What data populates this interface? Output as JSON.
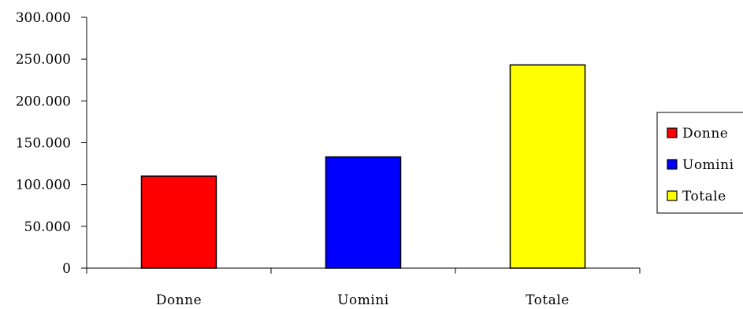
{
  "chart_data": {
    "type": "bar",
    "title": "",
    "xlabel": "",
    "ylabel": "",
    "categories": [
      "Donne",
      "Uomini",
      "Totale"
    ],
    "values": [
      110000,
      133000,
      243000
    ],
    "colors": [
      "#ff0000",
      "#0000ff",
      "#ffff00"
    ],
    "ylim": [
      0,
      300000
    ],
    "yticks": [
      0,
      50000,
      100000,
      150000,
      200000,
      250000,
      300000
    ],
    "ytick_labels": [
      "0",
      "50.000",
      "100.000",
      "150.000",
      "200.000",
      "250.000",
      "300.000"
    ],
    "grid": false,
    "legend": {
      "placement": "right",
      "entries": [
        {
          "label": "Donne",
          "color": "#ff0000"
        },
        {
          "label": "Uomini",
          "color": "#0000ff"
        },
        {
          "label": "Totale",
          "color": "#ffff00"
        }
      ]
    }
  }
}
